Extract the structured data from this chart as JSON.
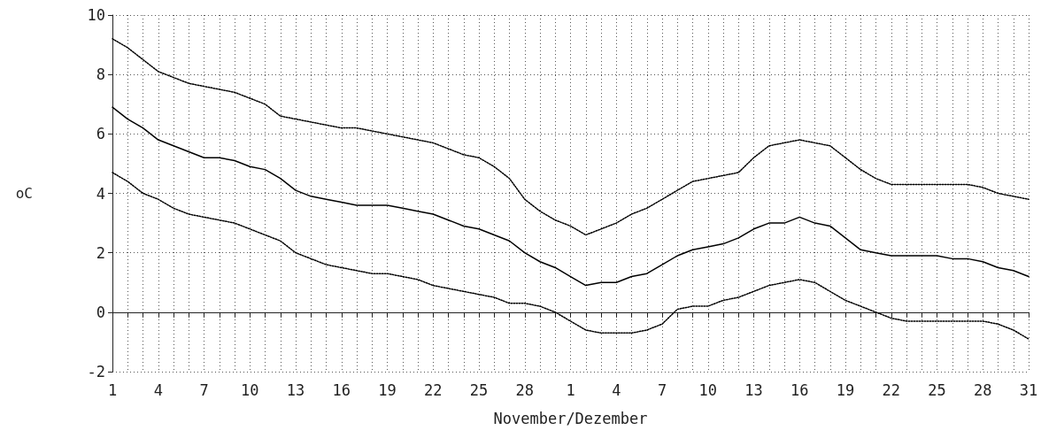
{
  "chart_data": {
    "type": "line",
    "xlabel": "November/Dezember",
    "ylabel": "oC",
    "categories": [
      "1",
      null,
      null,
      "4",
      null,
      null,
      "7",
      null,
      null,
      "10",
      null,
      null,
      "13",
      null,
      null,
      "16",
      null,
      null,
      "19",
      null,
      null,
      "22",
      null,
      null,
      "25",
      null,
      null,
      "28",
      null,
      null,
      "1",
      null,
      null,
      "4",
      null,
      null,
      "7",
      null,
      null,
      "10",
      null,
      null,
      "13",
      null,
      null,
      "16",
      null,
      null,
      "19",
      null,
      null,
      "22",
      null,
      null,
      "25",
      null,
      null,
      "28",
      null,
      null,
      "31"
    ],
    "series": [
      {
        "color": "#000000",
        "line_style": "dotted",
        "values": [
          9.2,
          8.9,
          8.5,
          8.1,
          7.9,
          7.7,
          7.6,
          7.5,
          7.4,
          7.2,
          7.0,
          6.6,
          6.5,
          6.4,
          6.3,
          6.2,
          6.2,
          6.1,
          6.0,
          5.9,
          5.8,
          5.7,
          5.5,
          5.3,
          5.2,
          4.9,
          4.5,
          3.8,
          3.4,
          3.1,
          2.9,
          2.6,
          2.8,
          3.0,
          3.3,
          3.5,
          3.8,
          4.1,
          4.4,
          4.5,
          4.6,
          4.7,
          5.2,
          5.6,
          5.7,
          5.8,
          5.7,
          5.6,
          5.2,
          4.8,
          4.5,
          4.3,
          4.3,
          4.3,
          4.3,
          4.3,
          4.3,
          4.2,
          4.0,
          3.9,
          3.8
        ]
      },
      {
        "color": "#000000",
        "line_style": "solid",
        "values": [
          6.9,
          6.5,
          6.2,
          5.8,
          5.6,
          5.4,
          5.2,
          5.2,
          5.1,
          4.9,
          4.8,
          4.5,
          4.1,
          3.9,
          3.8,
          3.7,
          3.6,
          3.6,
          3.6,
          3.5,
          3.4,
          3.3,
          3.1,
          2.9,
          2.8,
          2.6,
          2.4,
          2.0,
          1.7,
          1.5,
          1.2,
          0.9,
          1.0,
          1.0,
          1.2,
          1.3,
          1.6,
          1.9,
          2.1,
          2.2,
          2.3,
          2.5,
          2.8,
          3.0,
          3.0,
          3.2,
          3.0,
          2.9,
          2.5,
          2.1,
          2.0,
          1.9,
          1.9,
          1.9,
          1.9,
          1.8,
          1.8,
          1.7,
          1.5,
          1.4,
          1.2
        ]
      },
      {
        "color": "#000000",
        "line_style": "dotted",
        "values": [
          4.7,
          4.4,
          4.0,
          3.8,
          3.5,
          3.3,
          3.2,
          3.1,
          3.0,
          2.8,
          2.6,
          2.4,
          2.0,
          1.8,
          1.6,
          1.5,
          1.4,
          1.3,
          1.3,
          1.2,
          1.1,
          0.9,
          0.8,
          0.7,
          0.6,
          0.5,
          0.3,
          0.3,
          0.2,
          0.0,
          -0.3,
          -0.6,
          -0.7,
          -0.7,
          -0.7,
          -0.6,
          -0.4,
          0.1,
          0.2,
          0.2,
          0.4,
          0.5,
          0.7,
          0.9,
          1.0,
          1.1,
          1.0,
          0.7,
          0.4,
          0.2,
          0.0,
          -0.2,
          -0.3,
          -0.3,
          -0.3,
          -0.3,
          -0.3,
          -0.3,
          -0.4,
          -0.6,
          -0.9
        ]
      }
    ],
    "ylim": [
      -2,
      10
    ],
    "yticks": [
      -2,
      0,
      2,
      4,
      6,
      8,
      10
    ],
    "grid": true
  }
}
